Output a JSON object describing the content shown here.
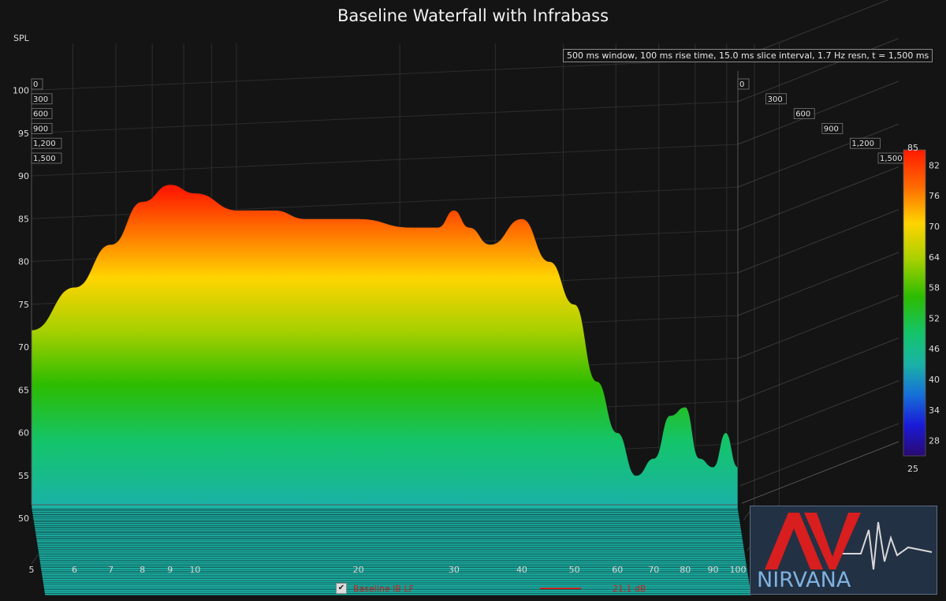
{
  "title": "Baseline Waterfall with Infrabass",
  "y_axis_label": "SPL",
  "info_box": "500 ms window, 100 ms rise time, 15.0 ms slice interval, 1.7 Hz resn, t = 1,500 ms",
  "legend": {
    "checked": true,
    "series_name": "Baseline IB LF",
    "value": "21.1 dB",
    "color": "#c81e1e"
  },
  "logo": {
    "text_top": "AV",
    "text_bottom": "NIRVANA",
    "accent_color": "#d81e1e",
    "text_color": "#7fb2e0"
  },
  "chart_data": {
    "type": "area",
    "subtype": "waterfall-3d",
    "title": "Baseline Waterfall with Infrabass",
    "ylabel": "SPL",
    "xscale": "log",
    "x_ticks": [
      5,
      6,
      7,
      8,
      9,
      10,
      20,
      30,
      40,
      50,
      60,
      70,
      80,
      90,
      100
    ],
    "y_ticks": [
      50,
      55,
      60,
      65,
      70,
      75,
      80,
      85,
      90,
      95,
      100
    ],
    "time_ticks": [
      "0",
      "300",
      "600",
      "900",
      "1,200",
      "1,500"
    ],
    "time_unit": "ms",
    "ylim": [
      46,
      101
    ],
    "xlim": [
      5,
      100
    ],
    "colorbar": {
      "min": 25,
      "max": 85,
      "ticks": [
        28,
        34,
        40,
        46,
        52,
        58,
        64,
        70,
        76,
        82,
        85,
        25
      ]
    },
    "series": [
      {
        "name": "t = 0 ms",
        "x": [
          5,
          6,
          7,
          8,
          9,
          10,
          12,
          14,
          16,
          20,
          25,
          28,
          30,
          32,
          35,
          40,
          45,
          50,
          55,
          60,
          65,
          70,
          75,
          80,
          85,
          90,
          95,
          100
        ],
        "values": [
          72,
          77,
          82,
          87,
          89,
          88,
          86,
          86,
          85,
          85,
          84,
          84,
          86,
          84,
          82,
          85,
          80,
          75,
          66,
          60,
          55,
          57,
          62,
          63,
          57,
          56,
          60,
          56
        ]
      }
    ],
    "grid": true
  }
}
